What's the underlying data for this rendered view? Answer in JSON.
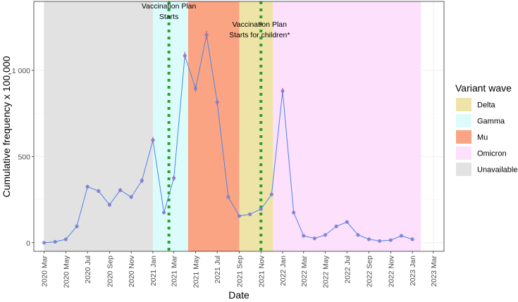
{
  "chart_data": {
    "type": "line",
    "xlabel": "Date",
    "ylabel": "Cumulative frequency x 100,000",
    "ylim": [
      -50,
      1400
    ],
    "y_ticks": [
      0,
      500,
      1000
    ],
    "y_tick_labels": [
      "0",
      "500",
      "1 000"
    ],
    "x_range": [
      "2020-02-01",
      "2023-03-31"
    ],
    "x_ticks": [
      "2020-03",
      "2020-05",
      "2020-07",
      "2020-09",
      "2020-11",
      "2021-01",
      "2021-03",
      "2021-05",
      "2021-07",
      "2021-09",
      "2021-11",
      "2022-01",
      "2022-03",
      "2022-05",
      "2022-07",
      "2022-09",
      "2022-11",
      "2023-01",
      "2023-03"
    ],
    "x_tick_labels": [
      "2020 Mar",
      "2020 May",
      "2020 Jul",
      "2020 Sep",
      "2020 Nov",
      "2021 Jan",
      "2021 Mar",
      "2021 May",
      "2021 Jul",
      "2021 Sep",
      "2021 Nov",
      "2022 Jan",
      "2022 Mar",
      "2022 May",
      "2022 Jul",
      "2022 Sep",
      "2022 Nov",
      "2023 Jan",
      "2023 Mar"
    ],
    "grid": true,
    "line_color": "#4a86e8",
    "point_color": "#7b7fd6",
    "errorbar_color": "#e0607e",
    "bands": [
      {
        "variant": "Unavailable",
        "start": "2020-03-01",
        "end": "2021-01-01"
      },
      {
        "variant": "Gamma",
        "start": "2021-01-01",
        "end": "2021-04-10"
      },
      {
        "variant": "Mu",
        "start": "2021-04-10",
        "end": "2021-09-01"
      },
      {
        "variant": "Delta",
        "start": "2021-09-01",
        "end": "2021-12-05"
      },
      {
        "variant": "Omicron",
        "start": "2021-12-05",
        "end": "2023-01-25"
      }
    ],
    "vlines": [
      {
        "date": "2021-02-15",
        "label_line1": "Vaccination Plan",
        "label_line2": "Starts"
      },
      {
        "date": "2021-11-01",
        "label_line1": "Vaccination Plan",
        "label_line2": "Starts for children*"
      }
    ],
    "vline_color": "#2ca02c",
    "series": [
      {
        "x": [
          "2020-03-01",
          "2020-04-01",
          "2020-05-01",
          "2020-06-01",
          "2020-07-01",
          "2020-08-01",
          "2020-09-01",
          "2020-10-01",
          "2020-11-01",
          "2020-12-01",
          "2021-01-01",
          "2021-02-01",
          "2021-03-01",
          "2021-04-01",
          "2021-05-01",
          "2021-06-01",
          "2021-07-01",
          "2021-08-01",
          "2021-09-01",
          "2021-10-01",
          "2021-11-01",
          "2021-12-01",
          "2022-01-01",
          "2022-02-01",
          "2022-03-01",
          "2022-04-01",
          "2022-05-01",
          "2022-06-01",
          "2022-07-01",
          "2022-08-01",
          "2022-09-01",
          "2022-10-01",
          "2022-11-01",
          "2022-12-01",
          "2023-01-01"
        ],
        "y": [
          0,
          5,
          20,
          95,
          325,
          300,
          220,
          305,
          265,
          360,
          595,
          175,
          375,
          1085,
          895,
          1205,
          815,
          265,
          155,
          165,
          195,
          280,
          880,
          175,
          40,
          25,
          45,
          95,
          120,
          45,
          20,
          10,
          15,
          40,
          20
        ],
        "err": [
          3,
          3,
          4,
          6,
          12,
          11,
          9,
          12,
          10,
          14,
          18,
          9,
          15,
          22,
          20,
          25,
          20,
          10,
          8,
          8,
          8,
          10,
          18,
          9,
          4,
          3,
          4,
          6,
          7,
          4,
          3,
          3,
          3,
          4,
          3
        ]
      }
    ],
    "legend": {
      "title": "Variant wave",
      "position": "right",
      "entries": [
        {
          "label": "Delta",
          "color": "#efe4a8"
        },
        {
          "label": "Gamma",
          "color": "#dcfcfb"
        },
        {
          "label": "Mu",
          "color": "#fba483"
        },
        {
          "label": "Omicron",
          "color": "#fce0fc"
        },
        {
          "label": "Unavailable",
          "color": "#e2e2e2"
        }
      ]
    }
  }
}
